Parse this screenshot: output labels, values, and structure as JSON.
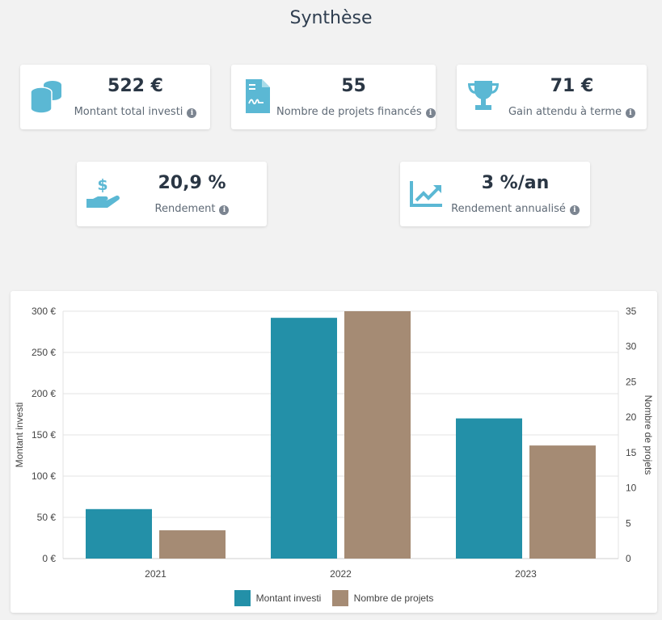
{
  "page": {
    "title": "Synthèse"
  },
  "cards": {
    "invested": {
      "value": "522 €",
      "label": "Montant total investi",
      "icon": "coins-icon"
    },
    "projects": {
      "value": "55",
      "label": "Nombre de projets financés",
      "icon": "document-icon"
    },
    "gain": {
      "value": "71 €",
      "label": "Gain attendu à terme",
      "icon": "trophy-icon"
    },
    "yield": {
      "value": "20,9 %",
      "label": "Rendement",
      "icon": "hand-dollar-icon"
    },
    "annual": {
      "value": "3 %/an",
      "label": "Rendement annualisé",
      "icon": "trend-chart-icon"
    }
  },
  "info_glyph": "i",
  "colors": {
    "icon": "#5bb8d4",
    "series1": "#2390a8",
    "series2": "#a58b74"
  },
  "chart_data": {
    "type": "bar",
    "categories": [
      "2021",
      "2022",
      "2023"
    ],
    "series": [
      {
        "name": "Montant investi",
        "values": [
          60,
          292,
          170
        ],
        "axis": "left"
      },
      {
        "name": "Nombre de projets",
        "values": [
          4,
          35,
          16
        ],
        "axis": "right"
      }
    ],
    "ylabel": "Montant investi",
    "y2label": "Nombre de projets",
    "ylim": [
      0,
      300
    ],
    "y2lim": [
      0,
      35
    ],
    "yticks": [
      "0 €",
      "50 €",
      "100 €",
      "150 €",
      "200 €",
      "250 €",
      "300 €"
    ],
    "y2ticks": [
      "0",
      "5",
      "10",
      "15",
      "20",
      "25",
      "30",
      "35"
    ],
    "grid": true,
    "legend_position": "bottom"
  }
}
